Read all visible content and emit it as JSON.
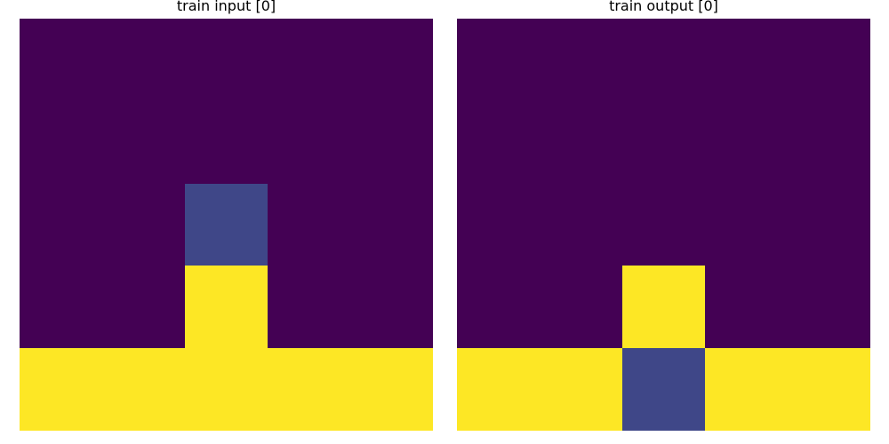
{
  "colors": {
    "0": "#440154",
    "1": "#3f4788",
    "2": "#fde725"
  },
  "panels": [
    {
      "title": "train input [0]",
      "grid": [
        [
          0,
          0,
          0,
          0,
          0
        ],
        [
          0,
          0,
          0,
          0,
          0
        ],
        [
          0,
          0,
          1,
          0,
          0
        ],
        [
          0,
          0,
          2,
          0,
          0
        ],
        [
          2,
          2,
          2,
          2,
          2
        ]
      ]
    },
    {
      "title": "train output [0]",
      "grid": [
        [
          0,
          0,
          0,
          0,
          0
        ],
        [
          0,
          0,
          0,
          0,
          0
        ],
        [
          0,
          0,
          0,
          0,
          0
        ],
        [
          0,
          0,
          2,
          0,
          0
        ],
        [
          2,
          2,
          1,
          2,
          2
        ]
      ]
    }
  ]
}
